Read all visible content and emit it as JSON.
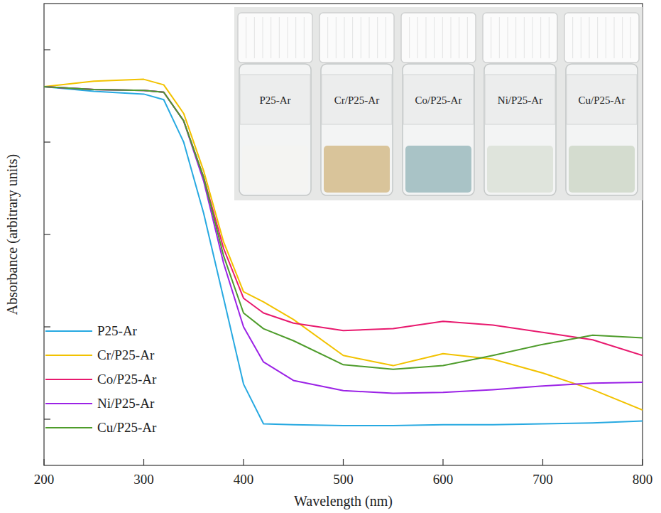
{
  "chart_data": {
    "type": "line",
    "x_label": "Wavelength (nm)",
    "y_label": "Absorbance (arbitrary units)",
    "xlim": [
      200,
      800
    ],
    "xticks": [
      200,
      300,
      400,
      500,
      600,
      700,
      800
    ],
    "ylim": [
      0.5,
      5.5
    ],
    "yticks": [
      1,
      2,
      3,
      4,
      5
    ],
    "tick_labels": "x",
    "grid": false,
    "legend": "lower left",
    "annotations": [
      "P25-Ar",
      "Cr/P25-Ar",
      "Co/P25-Ar",
      "Ni/P25-Ar",
      "Cu/P25-Ar"
    ],
    "x": [
      200,
      250,
      300,
      320,
      340,
      360,
      380,
      400,
      420,
      450,
      500,
      550,
      600,
      650,
      700,
      750,
      800
    ],
    "series": [
      {
        "name": "P25-Ar",
        "color": "#27a9e1",
        "values": [
          4.6,
          4.55,
          4.52,
          4.46,
          4.0,
          3.23,
          2.31,
          1.38,
          0.95,
          0.94,
          0.93,
          0.93,
          0.94,
          0.94,
          0.95,
          0.96,
          0.98
        ]
      },
      {
        "name": "Cr/P25-Ar",
        "color": "#f2c200",
        "values": [
          4.6,
          4.66,
          4.68,
          4.62,
          4.31,
          3.69,
          2.92,
          2.38,
          2.27,
          2.08,
          1.69,
          1.58,
          1.71,
          1.65,
          1.5,
          1.32,
          1.1
        ]
      },
      {
        "name": "Co/P25-Ar",
        "color": "#e8196e",
        "values": [
          4.6,
          4.57,
          4.56,
          4.54,
          4.23,
          3.62,
          2.85,
          2.31,
          2.15,
          2.04,
          1.96,
          1.98,
          2.06,
          2.02,
          1.94,
          1.86,
          1.69
        ]
      },
      {
        "name": "Ni/P25-Ar",
        "color": "#9b22e6",
        "values": [
          4.6,
          4.57,
          4.56,
          4.54,
          4.23,
          3.58,
          2.69,
          2.0,
          1.62,
          1.42,
          1.31,
          1.28,
          1.29,
          1.32,
          1.36,
          1.39,
          1.4
        ]
      },
      {
        "name": "Cu/P25-Ar",
        "color": "#4e9c2b",
        "values": [
          4.6,
          4.57,
          4.56,
          4.54,
          4.23,
          3.62,
          2.77,
          2.15,
          1.98,
          1.85,
          1.59,
          1.54,
          1.58,
          1.69,
          1.81,
          1.91,
          1.88
        ]
      }
    ]
  }
}
